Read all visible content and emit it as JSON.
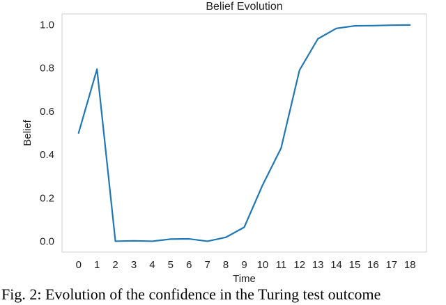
{
  "chart_data": {
    "type": "line",
    "title": "Belief Evolution",
    "xlabel": "Time",
    "ylabel": "Belief",
    "x": [
      0,
      1,
      2,
      3,
      4,
      5,
      6,
      7,
      8,
      9,
      10,
      11,
      12,
      13,
      14,
      15,
      16,
      17,
      18
    ],
    "x_ticks": [
      "0",
      "1",
      "2",
      "3",
      "4",
      "5",
      "6",
      "7",
      "8",
      "9",
      "10",
      "11",
      "12",
      "13",
      "14",
      "15",
      "16",
      "17",
      "18"
    ],
    "y_ticks": [
      "0.0",
      "0.2",
      "0.4",
      "0.6",
      "0.8",
      "1.0"
    ],
    "y_tick_values": [
      0.0,
      0.2,
      0.4,
      0.6,
      0.8,
      1.0
    ],
    "xlim": [
      -0.9,
      18.9
    ],
    "ylim": [
      -0.05,
      1.05
    ],
    "grid": false,
    "series": [
      {
        "color": "#1f77b4",
        "values": [
          0.5,
          0.795,
          0.0,
          0.002,
          0.0,
          0.01,
          0.011,
          0.0,
          0.018,
          0.065,
          0.26,
          0.43,
          0.79,
          0.935,
          0.983,
          0.995,
          0.996,
          0.998,
          0.999
        ]
      }
    ]
  },
  "caption": "Fig. 2: Evolution of the confidence in the Turing test outcome"
}
